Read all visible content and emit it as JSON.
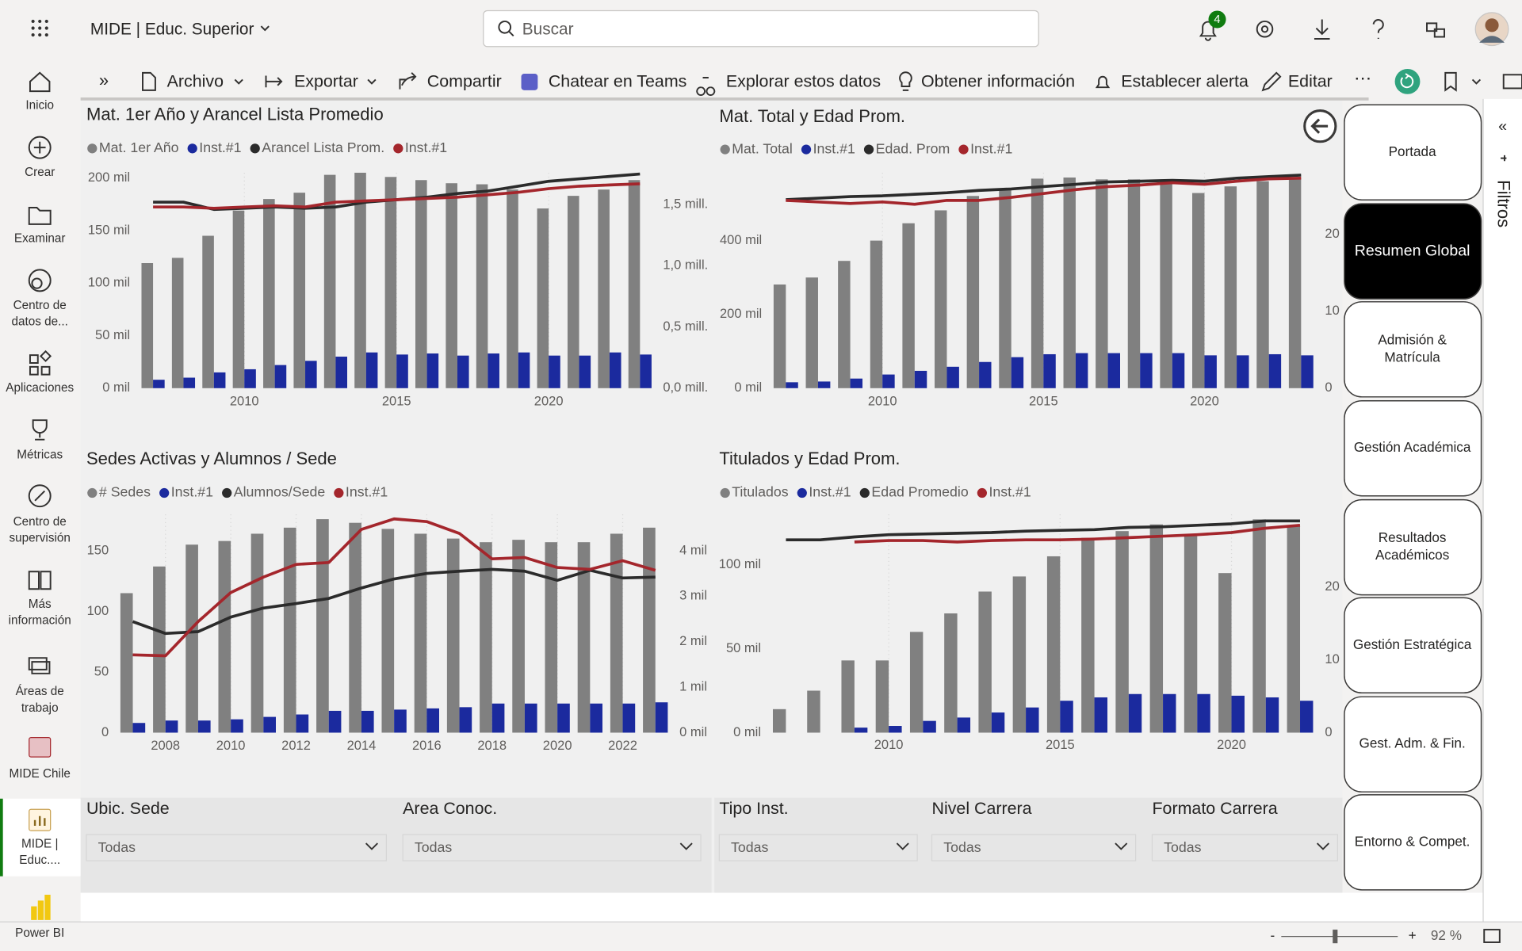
{
  "header": {
    "app": "MIDE | Educ. Superior",
    "search": "Buscar",
    "badge": 4
  },
  "toolbar": [
    "Archivo",
    "Exportar",
    "Compartir",
    "Chatear en Teams",
    "Explorar estos datos",
    "Obtener información",
    "Establecer alerta",
    "Editar"
  ],
  "nav": [
    {
      "lines": [
        "Inicio"
      ]
    },
    {
      "lines": [
        "Crear"
      ]
    },
    {
      "lines": [
        "Examinar"
      ]
    },
    {
      "lines": [
        "Centro de",
        "datos de..."
      ]
    },
    {
      "lines": [
        "Aplicaciones"
      ]
    },
    {
      "lines": [
        "Métricas"
      ]
    },
    {
      "lines": [
        "Centro de",
        "supervisión"
      ]
    },
    {
      "lines": [
        "Más",
        "información"
      ]
    },
    {
      "lines": [
        "Áreas de",
        "trabajo"
      ]
    },
    {
      "lines": [
        "MIDE Chile"
      ]
    },
    {
      "lines": [
        "MIDE |",
        "Educ...."
      ]
    },
    {
      "lines": [
        "Power BI"
      ]
    }
  ],
  "chart_data": [
    {
      "type": "combo",
      "title": "Mat. 1er Año y Arancel Lista Promedio",
      "x": [
        2007,
        2008,
        2009,
        2010,
        2011,
        2012,
        2013,
        2014,
        2015,
        2016,
        2017,
        2018,
        2019,
        2020,
        2021,
        2022,
        2023
      ],
      "xlim": [
        2006.5,
        2023.5
      ],
      "xticks": [
        2010,
        2015,
        2020
      ],
      "ylim": [
        0,
        205000
      ],
      "yticks": [
        {
          "value": 0,
          "label": "0 mil"
        },
        {
          "value": 50000,
          "label": "50 mil"
        },
        {
          "value": 100000,
          "label": "100 mil"
        },
        {
          "value": 150000,
          "label": "150 mil"
        },
        {
          "value": 200000,
          "label": "200 mil"
        }
      ],
      "y2lim": [
        0,
        1760000
      ],
      "y2ticks": [
        {
          "value": 0,
          "label": "0,0 mill."
        },
        {
          "value": 500000,
          "label": "0,5 mill."
        },
        {
          "value": 1000000,
          "label": "1,0 mill."
        },
        {
          "value": 1500000,
          "label": "1,5 mill."
        }
      ],
      "grid": true,
      "series": [
        {
          "name": "Mat. 1er Año",
          "type": "bar",
          "color": "#808080",
          "values": [
            119000,
            124000,
            145000,
            169000,
            180000,
            186000,
            203000,
            205000,
            201000,
            198000,
            195000,
            194000,
            189000,
            171000,
            183000,
            189000,
            198000
          ]
        },
        {
          "name": "Inst.#1",
          "type": "bar",
          "color": "#1b2a9e",
          "values": [
            8000,
            10000,
            15000,
            18000,
            22000,
            26000,
            30000,
            34000,
            32000,
            33000,
            31000,
            33000,
            34000,
            31000,
            31000,
            34000,
            32000
          ]
        },
        {
          "name": "Arancel Lista Prom.",
          "type": "line",
          "axis": "y2",
          "color": "#2b2b2b",
          "values": [
            1520000,
            1520000,
            1460000,
            1470000,
            1480000,
            1470000,
            1480000,
            1520000,
            1540000,
            1560000,
            1590000,
            1610000,
            1650000,
            1690000,
            1710000,
            1730000,
            1750000
          ]
        },
        {
          "name": "Inst.#1",
          "type": "line",
          "axis": "y2",
          "color": "#a4262c",
          "values": [
            1480000,
            1480000,
            1470000,
            1480000,
            1490000,
            1480000,
            1520000,
            1530000,
            1540000,
            1550000,
            1560000,
            1580000,
            1600000,
            1630000,
            1650000,
            1660000,
            1670000
          ]
        }
      ]
    },
    {
      "type": "combo",
      "title": "Mat. Total y Edad Prom.",
      "x": [
        2007,
        2008,
        2009,
        2010,
        2011,
        2012,
        2013,
        2014,
        2015,
        2016,
        2017,
        2018,
        2019,
        2020,
        2021,
        2022,
        2023
      ],
      "xlim": [
        2006.5,
        2023.5
      ],
      "xticks": [
        2010,
        2015,
        2020
      ],
      "ylim": [
        0,
        584000
      ],
      "yticks": [
        {
          "value": 0,
          "label": "0 mil"
        },
        {
          "value": 200000,
          "label": "200 mil"
        },
        {
          "value": 400000,
          "label": "400 mil"
        }
      ],
      "y2lim": [
        0,
        28
      ],
      "y2ticks": [
        0,
        10,
        20
      ],
      "grid": true,
      "series": [
        {
          "name": "Mat. Total",
          "type": "bar",
          "color": "#808080",
          "values": [
            281000,
            300000,
            345000,
            400000,
            447000,
            482000,
            521000,
            542000,
            568000,
            571000,
            566000,
            566000,
            566000,
            529000,
            547000,
            561000,
            571000
          ]
        },
        {
          "name": "Inst.#1",
          "type": "bar",
          "color": "#1b2a9e",
          "values": [
            16000,
            18000,
            26000,
            37000,
            47000,
            58000,
            71000,
            84000,
            92000,
            95000,
            95000,
            95000,
            95000,
            89000,
            89000,
            92000,
            89000
          ]
        },
        {
          "name": "Edad. Prom",
          "type": "line",
          "axis": "y2",
          "color": "#2b2b2b",
          "values": [
            24.5,
            24.7,
            24.9,
            25.0,
            25.2,
            25.4,
            25.7,
            25.9,
            26.2,
            26.5,
            26.8,
            26.9,
            27.0,
            26.9,
            27.3,
            27.5,
            27.7
          ]
        },
        {
          "name": "Inst.#1",
          "type": "line",
          "axis": "y2",
          "color": "#a4262c",
          "values": [
            24.4,
            24.2,
            24.0,
            24.2,
            23.9,
            24.4,
            24.4,
            24.8,
            25.3,
            25.8,
            26.2,
            26.4,
            26.7,
            26.5,
            26.9,
            27.2,
            27.3
          ]
        }
      ]
    },
    {
      "type": "combo",
      "title": "Sedes Activas y Alumnos / Sede",
      "x": [
        2007,
        2008,
        2009,
        2010,
        2011,
        2012,
        2013,
        2014,
        2015,
        2016,
        2017,
        2018,
        2019,
        2020,
        2021,
        2022,
        2023
      ],
      "xlim": [
        2006.5,
        2023.5
      ],
      "xticks": [
        2008,
        2010,
        2012,
        2014,
        2016,
        2018,
        2020,
        2022
      ],
      "ylim": [
        0,
        180
      ],
      "yticks": [
        0,
        50,
        100,
        150
      ],
      "y2lim": [
        0,
        4800
      ],
      "y2ticks": [
        {
          "value": 0,
          "label": "0 mil"
        },
        {
          "value": 1000,
          "label": "1 mil"
        },
        {
          "value": 2000,
          "label": "2 mil"
        },
        {
          "value": 3000,
          "label": "3 mil"
        },
        {
          "value": 4000,
          "label": "4 mil"
        }
      ],
      "grid": true,
      "series": [
        {
          "name": "# Sedes",
          "type": "bar",
          "color": "#808080",
          "values": [
            115,
            137,
            155,
            158,
            164,
            169,
            176,
            173,
            168,
            164,
            160,
            157,
            159,
            157,
            157,
            164,
            169
          ]
        },
        {
          "name": "Inst.#1",
          "type": "bar",
          "color": "#1b2a9e",
          "values": [
            8,
            10,
            10,
            11,
            13,
            15,
            18,
            18,
            19,
            20,
            21,
            24,
            24,
            24,
            24,
            24,
            25
          ]
        },
        {
          "name": "Alumnos/Sede",
          "type": "line",
          "axis": "y2",
          "color": "#2b2b2b",
          "values": [
            2440,
            2180,
            2220,
            2540,
            2740,
            2840,
            2950,
            3180,
            3380,
            3500,
            3550,
            3590,
            3550,
            3350,
            3570,
            3400,
            3420
          ]
        },
        {
          "name": "Inst.#1",
          "type": "line",
          "axis": "y2",
          "color": "#a4262c",
          "values": [
            1710,
            1690,
            2440,
            3080,
            3420,
            3700,
            3740,
            4470,
            4700,
            4640,
            4380,
            3820,
            3850,
            3630,
            3590,
            3780,
            3570
          ]
        }
      ]
    },
    {
      "type": "combo",
      "title": "Titulados y Edad Prom.",
      "x": [
        2007,
        2008,
        2009,
        2010,
        2011,
        2012,
        2013,
        2014,
        2015,
        2016,
        2017,
        2018,
        2019,
        2020,
        2021,
        2022
      ],
      "xlim": [
        2006.5,
        2022.5
      ],
      "xticks": [
        2010,
        2015,
        2020
      ],
      "ylim": [
        0,
        130000
      ],
      "yticks": [
        {
          "value": 0,
          "label": "0 mil"
        },
        {
          "value": 50000,
          "label": "50 mil"
        },
        {
          "value": 100000,
          "label": "100 mil"
        }
      ],
      "y2lim": [
        0,
        30
      ],
      "y2ticks": [
        0,
        10,
        20
      ],
      "grid": true,
      "series": [
        {
          "name": "Titulados",
          "type": "bar",
          "color": "#808080",
          "values": [
            14000,
            25000,
            43000,
            43000,
            60000,
            71000,
            84000,
            93000,
            105000,
            116000,
            120000,
            124000,
            117000,
            95000,
            127000,
            123000
          ]
        },
        {
          "name": "Inst.#1",
          "type": "bar",
          "color": "#1b2a9e",
          "values": [
            null,
            null,
            3000,
            4000,
            7000,
            9000,
            12000,
            15000,
            19000,
            21000,
            23000,
            23000,
            23000,
            22000,
            21000,
            19000
          ]
        },
        {
          "name": "Edad Promedio",
          "type": "line",
          "axis": "y2",
          "color": "#2b2b2b",
          "values": [
            26.5,
            26.5,
            26.9,
            27.2,
            27.3,
            27.4,
            27.5,
            27.7,
            27.8,
            27.9,
            28.2,
            28.3,
            28.5,
            28.7,
            29.1,
            29.1
          ]
        },
        {
          "name": "Inst.#1",
          "type": "line",
          "axis": "y2",
          "color": "#a4262c",
          "values": [
            null,
            null,
            26.2,
            26.4,
            26.4,
            26.2,
            26.4,
            26.5,
            26.5,
            26.6,
            26.8,
            27.0,
            27.2,
            27.5,
            28.1,
            28.5
          ]
        }
      ]
    }
  ],
  "slicers": [
    {
      "title": "Ubic. Sede",
      "value": "Todas"
    },
    {
      "title": "Area Conoc.",
      "value": "Todas"
    },
    {
      "title": "Tipo Inst.",
      "value": "Todas"
    },
    {
      "title": "Nivel Carrera",
      "value": "Todas"
    },
    {
      "title": "Formato Carrera",
      "value": "Todas"
    }
  ],
  "pages": [
    {
      "lines": [
        "Portada"
      ]
    },
    {
      "lines": [
        "Resumen Global"
      ],
      "active": true
    },
    {
      "lines": [
        "Admisión &",
        "Matrícula"
      ]
    },
    {
      "lines": [
        "Gestión Académica"
      ]
    },
    {
      "lines": [
        "Resultados",
        "Académicos"
      ]
    },
    {
      "lines": [
        "Gestión Estratégica"
      ]
    },
    {
      "lines": [
        "Gest. Adm. & Fin."
      ]
    },
    {
      "lines": [
        "Entorno & Compet."
      ]
    }
  ],
  "filters": "Filtros",
  "footer": {
    "zoom": "92 %"
  }
}
